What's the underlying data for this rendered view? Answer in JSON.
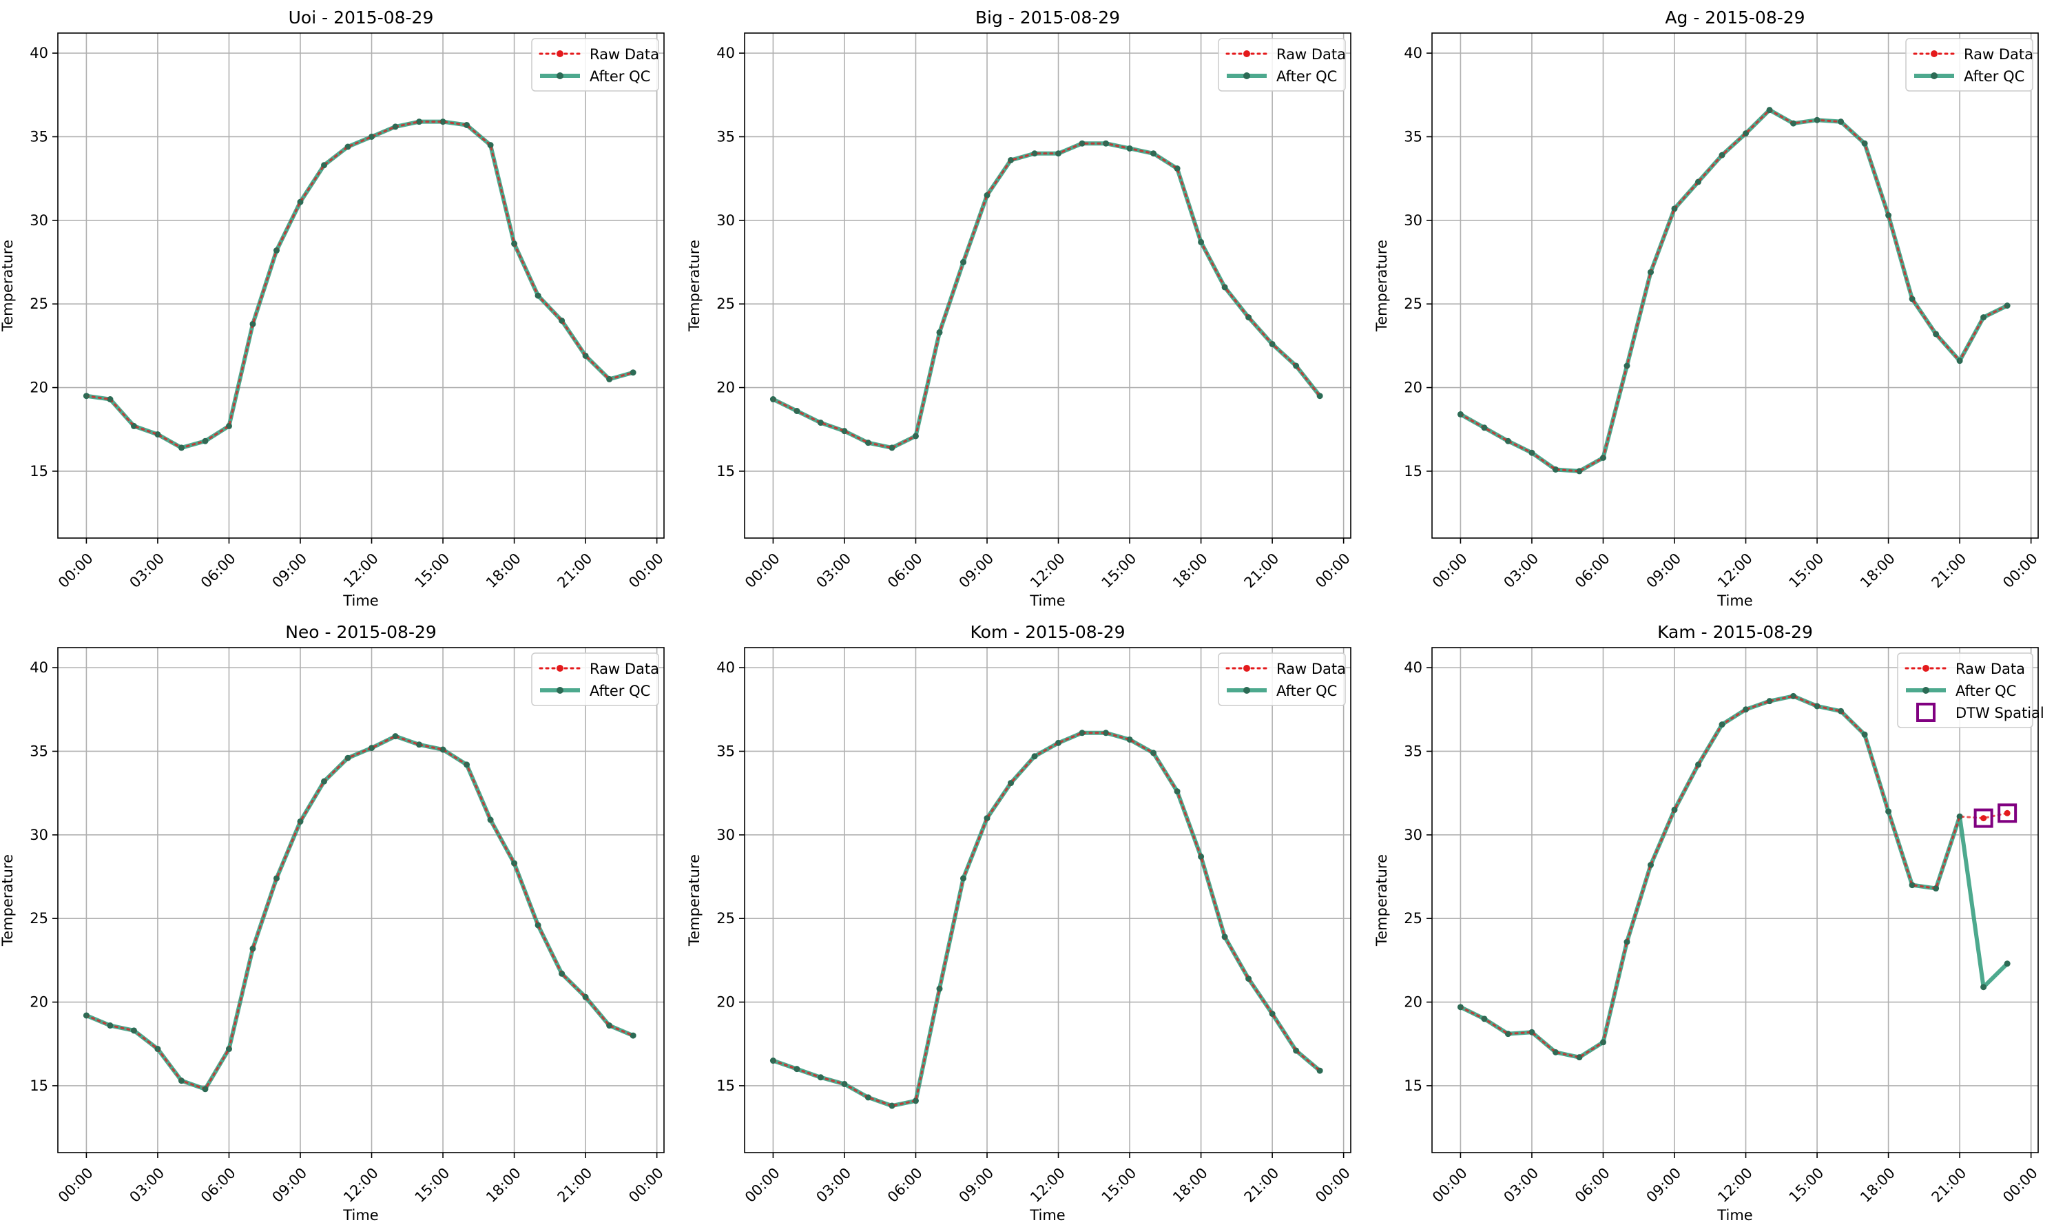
{
  "figure": {
    "legend_labels": {
      "raw": "Raw Data",
      "qc": "After QC",
      "dtw": "DTW Spatial"
    },
    "xlabel": "Time",
    "ylabel": "Temperature",
    "x_ticks": [
      "00:00",
      "03:00",
      "06:00",
      "09:00",
      "12:00",
      "15:00",
      "18:00",
      "21:00",
      "00:00"
    ],
    "y_ticks": [
      15,
      20,
      25,
      30,
      35,
      40
    ],
    "colors": {
      "raw": "#e41a1c",
      "qc": "#2e9a7a",
      "qc_marker": "#2c6b55",
      "dtw": "#800080",
      "grid": "#b0b0b0"
    }
  },
  "chart_data": [
    {
      "type": "line",
      "title": "Uoi - 2015-08-29",
      "xlabel": "Time",
      "ylabel": "Temperature",
      "x_hours": [
        0,
        1,
        2,
        3,
        4,
        5,
        6,
        7,
        8,
        9,
        10,
        11,
        12,
        13,
        14,
        15,
        16,
        17,
        18,
        19,
        20,
        21,
        22,
        23
      ],
      "xlim": [
        -1.2,
        24.3
      ],
      "ylim": [
        11,
        41.2
      ],
      "grid": true,
      "legend": "top-right",
      "series": [
        {
          "name": "Raw Data",
          "values": [
            19.5,
            19.3,
            17.7,
            17.2,
            16.4,
            16.8,
            17.7,
            23.8,
            28.2,
            31.1,
            33.3,
            34.4,
            35.0,
            35.6,
            35.9,
            35.9,
            35.7,
            34.5,
            28.6,
            25.5,
            24.0,
            21.9,
            20.5,
            20.9
          ]
        },
        {
          "name": "After QC",
          "values": [
            19.5,
            19.3,
            17.7,
            17.2,
            16.4,
            16.8,
            17.7,
            23.8,
            28.2,
            31.1,
            33.3,
            34.4,
            35.0,
            35.6,
            35.9,
            35.9,
            35.7,
            34.5,
            28.6,
            25.5,
            24.0,
            21.9,
            20.5,
            20.9
          ]
        }
      ]
    },
    {
      "type": "line",
      "title": "Big - 2015-08-29",
      "xlabel": "Time",
      "ylabel": "Temperature",
      "x_hours": [
        0,
        1,
        2,
        3,
        4,
        5,
        6,
        7,
        8,
        9,
        10,
        11,
        12,
        13,
        14,
        15,
        16,
        17,
        18,
        19,
        20,
        21,
        22,
        23
      ],
      "xlim": [
        -1.2,
        24.3
      ],
      "ylim": [
        11,
        41.2
      ],
      "grid": true,
      "legend": "top-right",
      "series": [
        {
          "name": "Raw Data",
          "values": [
            19.3,
            18.6,
            17.9,
            17.4,
            16.7,
            16.4,
            17.1,
            23.3,
            27.5,
            31.5,
            33.6,
            34.0,
            34.0,
            34.6,
            34.6,
            34.3,
            34.0,
            33.1,
            28.7,
            26.0,
            24.2,
            22.6,
            21.3,
            19.5
          ]
        },
        {
          "name": "After QC",
          "values": [
            19.3,
            18.6,
            17.9,
            17.4,
            16.7,
            16.4,
            17.1,
            23.3,
            27.5,
            31.5,
            33.6,
            34.0,
            34.0,
            34.6,
            34.6,
            34.3,
            34.0,
            33.1,
            28.7,
            26.0,
            24.2,
            22.6,
            21.3,
            19.5
          ]
        }
      ]
    },
    {
      "type": "line",
      "title": "Ag - 2015-08-29",
      "xlabel": "Time",
      "ylabel": "Temperature",
      "x_hours": [
        0,
        1,
        2,
        3,
        4,
        5,
        6,
        7,
        8,
        9,
        10,
        11,
        12,
        13,
        14,
        15,
        16,
        17,
        18,
        19,
        20,
        21,
        22,
        23
      ],
      "xlim": [
        -1.2,
        24.3
      ],
      "ylim": [
        11,
        41.2
      ],
      "grid": true,
      "legend": "top-right",
      "series": [
        {
          "name": "Raw Data",
          "values": [
            18.4,
            17.6,
            16.8,
            16.1,
            15.1,
            15.0,
            15.8,
            21.3,
            26.9,
            30.7,
            32.3,
            33.9,
            35.2,
            36.6,
            35.8,
            36.0,
            35.9,
            34.6,
            30.3,
            25.3,
            23.2,
            21.6,
            24.2,
            24.9
          ]
        },
        {
          "name": "After QC",
          "values": [
            18.4,
            17.6,
            16.8,
            16.1,
            15.1,
            15.0,
            15.8,
            21.3,
            26.9,
            30.7,
            32.3,
            33.9,
            35.2,
            36.6,
            35.8,
            36.0,
            35.9,
            34.6,
            30.3,
            25.3,
            23.2,
            21.6,
            24.2,
            24.9
          ]
        }
      ]
    },
    {
      "type": "line",
      "title": "Neo - 2015-08-29",
      "xlabel": "Time",
      "ylabel": "Temperature",
      "x_hours": [
        0,
        1,
        2,
        3,
        4,
        5,
        6,
        7,
        8,
        9,
        10,
        11,
        12,
        13,
        14,
        15,
        16,
        17,
        18,
        19,
        20,
        21,
        22,
        23
      ],
      "xlim": [
        -1.2,
        24.3
      ],
      "ylim": [
        11,
        41.2
      ],
      "grid": true,
      "legend": "top-right",
      "series": [
        {
          "name": "Raw Data",
          "values": [
            19.2,
            18.6,
            18.3,
            17.2,
            15.3,
            14.8,
            17.2,
            23.2,
            27.4,
            30.8,
            33.2,
            34.6,
            35.2,
            35.9,
            35.4,
            35.1,
            34.2,
            30.9,
            28.3,
            24.6,
            21.7,
            20.3,
            18.6,
            18.0
          ]
        },
        {
          "name": "After QC",
          "values": [
            19.2,
            18.6,
            18.3,
            17.2,
            15.3,
            14.8,
            17.2,
            23.2,
            27.4,
            30.8,
            33.2,
            34.6,
            35.2,
            35.9,
            35.4,
            35.1,
            34.2,
            30.9,
            28.3,
            24.6,
            21.7,
            20.3,
            18.6,
            18.0
          ]
        }
      ]
    },
    {
      "type": "line",
      "title": "Kom - 2015-08-29",
      "xlabel": "Time",
      "ylabel": "Temperature",
      "x_hours": [
        0,
        1,
        2,
        3,
        4,
        5,
        6,
        7,
        8,
        9,
        10,
        11,
        12,
        13,
        14,
        15,
        16,
        17,
        18,
        19,
        20,
        21,
        22,
        23
      ],
      "xlim": [
        -1.2,
        24.3
      ],
      "ylim": [
        11,
        41.2
      ],
      "grid": true,
      "legend": "top-right",
      "series": [
        {
          "name": "Raw Data",
          "values": [
            16.5,
            16.0,
            15.5,
            15.1,
            14.3,
            13.8,
            14.1,
            20.8,
            27.4,
            31.0,
            33.1,
            34.7,
            35.5,
            36.1,
            36.1,
            35.7,
            34.9,
            32.6,
            28.7,
            23.9,
            21.4,
            19.3,
            17.1,
            15.9
          ]
        },
        {
          "name": "After QC",
          "values": [
            16.5,
            16.0,
            15.5,
            15.1,
            14.3,
            13.8,
            14.1,
            20.8,
            27.4,
            31.0,
            33.1,
            34.7,
            35.5,
            36.1,
            36.1,
            35.7,
            34.9,
            32.6,
            28.7,
            23.9,
            21.4,
            19.3,
            17.1,
            15.9
          ]
        }
      ]
    },
    {
      "type": "line",
      "title": "Kam - 2015-08-29",
      "xlabel": "Time",
      "ylabel": "Temperature",
      "x_hours": [
        0,
        1,
        2,
        3,
        4,
        5,
        6,
        7,
        8,
        9,
        10,
        11,
        12,
        13,
        14,
        15,
        16,
        17,
        18,
        19,
        20,
        21,
        22,
        23
      ],
      "xlim": [
        -1.2,
        24.3
      ],
      "ylim": [
        11,
        41.2
      ],
      "grid": true,
      "legend": "top-right",
      "series": [
        {
          "name": "Raw Data",
          "values": [
            19.7,
            19.0,
            18.1,
            18.2,
            17.0,
            16.7,
            17.6,
            23.6,
            28.2,
            31.5,
            34.2,
            36.6,
            37.5,
            38.0,
            38.3,
            37.7,
            37.4,
            36.0,
            31.4,
            27.0,
            26.8,
            31.1,
            31.0,
            31.3
          ]
        },
        {
          "name": "After QC",
          "values": [
            19.7,
            19.0,
            18.1,
            18.2,
            17.0,
            16.7,
            17.6,
            23.6,
            28.2,
            31.5,
            34.2,
            36.6,
            37.5,
            38.0,
            38.3,
            37.7,
            37.4,
            36.0,
            31.4,
            27.0,
            26.8,
            31.1,
            20.9,
            22.3
          ]
        },
        {
          "name": "DTW Spatial",
          "x_hours": [
            22,
            23
          ],
          "values": [
            31.0,
            31.3
          ]
        }
      ]
    }
  ]
}
